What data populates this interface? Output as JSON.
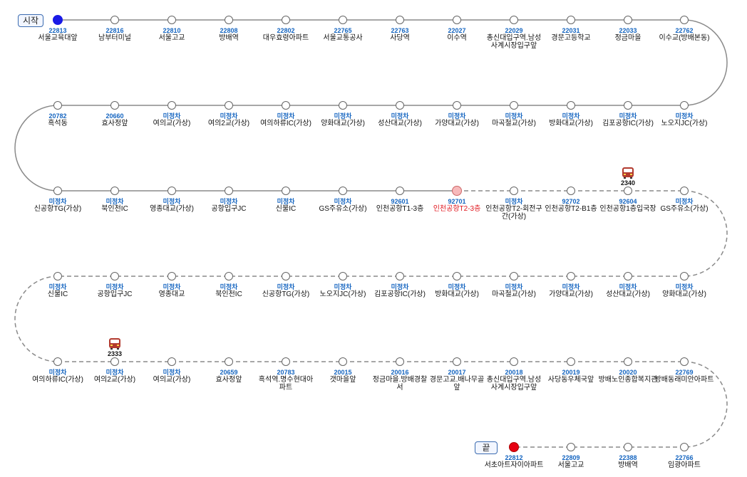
{
  "labels": {
    "start": "시작",
    "end": "끝"
  },
  "colors": {
    "code": "#1565c0",
    "start_node": "#1a1ae6",
    "end_node": "#e60012",
    "current_node": "#f7b9bb",
    "current_text": "#e0161d",
    "line": "#888888"
  },
  "rows": [
    [
      {
        "code": "22813",
        "name": "서울교육대앞",
        "type": "start"
      },
      {
        "code": "22816",
        "name": "남부터미널"
      },
      {
        "code": "22810",
        "name": "서울고교"
      },
      {
        "code": "22808",
        "name": "방배역"
      },
      {
        "code": "22802",
        "name": "대우효령아파트"
      },
      {
        "code": "22765",
        "name": "서울교통공사"
      },
      {
        "code": "22763",
        "name": "사당역"
      },
      {
        "code": "22027",
        "name": "이수역"
      },
      {
        "code": "22029",
        "name": "총신대입구역.남성사계시장입구앞"
      },
      {
        "code": "22031",
        "name": "경문고등학교"
      },
      {
        "code": "22033",
        "name": "정금마을"
      },
      {
        "code": "22762",
        "name": "이수교(방배본동)"
      }
    ],
    [
      {
        "code": "미정차",
        "name": "노오지JC(가상)"
      },
      {
        "code": "미정차",
        "name": "김포공항IC(가상)"
      },
      {
        "code": "미정차",
        "name": "방화대교(가상)"
      },
      {
        "code": "미정차",
        "name": "마곡철교(가상)"
      },
      {
        "code": "미정차",
        "name": "가양대교(가상)"
      },
      {
        "code": "미정차",
        "name": "성산대교(가상)"
      },
      {
        "code": "미정차",
        "name": "양화대교(가상)"
      },
      {
        "code": "미정차",
        "name": "여의하류IC(가상)"
      },
      {
        "code": "미정차",
        "name": "여의2교(가상)"
      },
      {
        "code": "미정차",
        "name": "여의교(가상)"
      },
      {
        "code": "20660",
        "name": "효사정앞"
      },
      {
        "code": "20782",
        "name": "흑석동"
      }
    ],
    [
      {
        "code": "미정차",
        "name": "신공항TG(가상)"
      },
      {
        "code": "미정차",
        "name": "북인천IC"
      },
      {
        "code": "미정차",
        "name": "영종대교(가상)"
      },
      {
        "code": "미정차",
        "name": "공항입구JC"
      },
      {
        "code": "미정차",
        "name": "신불IC"
      },
      {
        "code": "미정차",
        "name": "GS주유소(가상)"
      },
      {
        "code": "92601",
        "name": "인천공항T1-3층"
      },
      {
        "code": "92701",
        "name": "인천공항T2-3층",
        "type": "current"
      },
      {
        "code": "미정차",
        "name": "인천공항T2-회전구간(가상)"
      },
      {
        "code": "92702",
        "name": "인천공항T2-B1층"
      },
      {
        "code": "92604",
        "name": "인천공항1층입국장"
      },
      {
        "code": "미정차",
        "name": "GS주유소(가상)"
      }
    ],
    [
      {
        "code": "미정차",
        "name": "양화대교(가상)"
      },
      {
        "code": "미정차",
        "name": "성산대교(가상)"
      },
      {
        "code": "미정차",
        "name": "가양대교(가상)"
      },
      {
        "code": "미정차",
        "name": "마곡철교(가상)"
      },
      {
        "code": "미정차",
        "name": "방화대교(가상)"
      },
      {
        "code": "미정차",
        "name": "김포공항IC(가상)"
      },
      {
        "code": "미정차",
        "name": "노오지JC(가상)"
      },
      {
        "code": "미정차",
        "name": "신공항TG(가상)"
      },
      {
        "code": "미정차",
        "name": "북인천IC"
      },
      {
        "code": "미정차",
        "name": "영종대교"
      },
      {
        "code": "미정차",
        "name": "공항입구JC"
      },
      {
        "code": "미정차",
        "name": "신불IC"
      }
    ],
    [
      {
        "code": "미정차",
        "name": "여의하류IC(가상)"
      },
      {
        "code": "미정차",
        "name": "여의2교(가상)"
      },
      {
        "code": "미정차",
        "name": "여의교(가상)"
      },
      {
        "code": "20659",
        "name": "효사정앞"
      },
      {
        "code": "20783",
        "name": "흑석역.명수현대아파트"
      },
      {
        "code": "20015",
        "name": "갯마을앞"
      },
      {
        "code": "20016",
        "name": "정금마을.방배경찰서"
      },
      {
        "code": "20017",
        "name": "경문고교.배나무골앞"
      },
      {
        "code": "20018",
        "name": "총신대입구역.남성사계시장입구앞"
      },
      {
        "code": "20019",
        "name": "사당동우체국앞"
      },
      {
        "code": "20020",
        "name": "방배노인종합복지관"
      },
      {
        "code": "22769",
        "name": "방배동래미안아파트"
      }
    ],
    [
      {
        "code": "22812",
        "name": "서초아트자이아파트",
        "type": "end"
      },
      {
        "code": "22809",
        "name": "서울고교"
      },
      {
        "code": "22388",
        "name": "방배역"
      },
      {
        "code": "22766",
        "name": "임광아파트"
      }
    ]
  ],
  "buses": [
    {
      "number": "2340",
      "row": 2,
      "index": 10
    },
    {
      "number": "2333",
      "row": 4,
      "index": 1
    }
  ]
}
